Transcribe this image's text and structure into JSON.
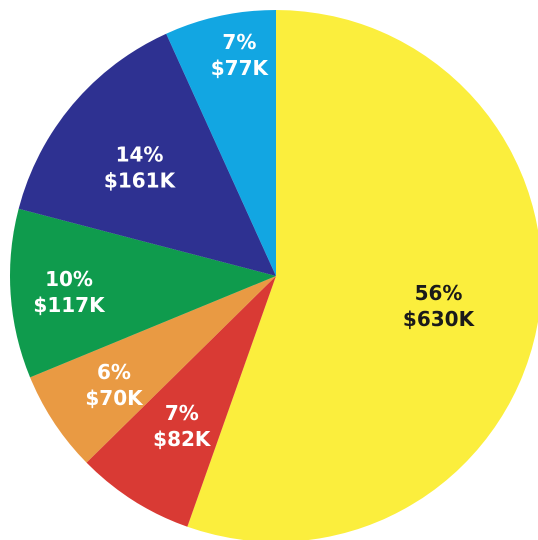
{
  "chart_data": {
    "type": "pie",
    "title": "",
    "slices": [
      {
        "percent_label": "56%",
        "value_label": "$630K",
        "value": 630,
        "color": "#fbee3d",
        "label_color": "#1a1a1a"
      },
      {
        "percent_label": "7%",
        "value_label": "$82K",
        "value": 82,
        "color": "#d93a34",
        "label_color": "#ffffff"
      },
      {
        "percent_label": "6%",
        "value_label": "$70K",
        "value": 70,
        "color": "#e99a43",
        "label_color": "#ffffff"
      },
      {
        "percent_label": "10%",
        "value_label": "$117K",
        "value": 117,
        "color": "#0f9b4d",
        "label_color": "#ffffff"
      },
      {
        "percent_label": "14%",
        "value_label": "$161K",
        "value": 161,
        "color": "#2e3191",
        "label_color": "#ffffff"
      },
      {
        "percent_label": "7%",
        "value_label": "$77K",
        "value": 77,
        "color": "#12a6e2",
        "label_color": "#ffffff"
      }
    ],
    "start_angle_deg": 0,
    "direction": "clockwise",
    "legend": "none"
  }
}
